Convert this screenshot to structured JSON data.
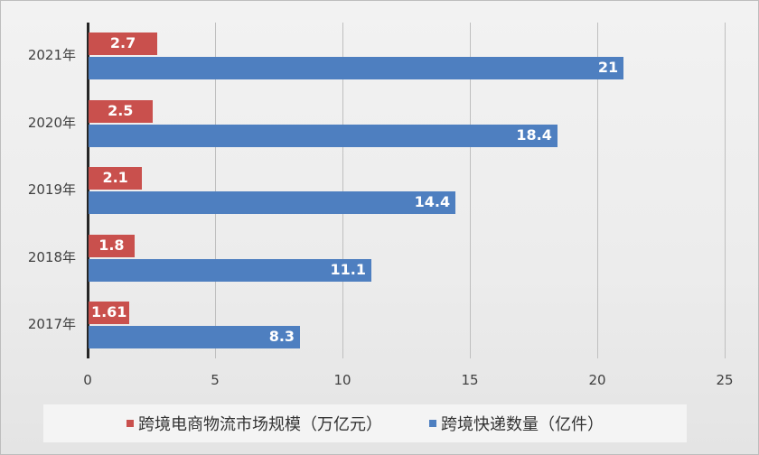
{
  "chart_data": {
    "type": "bar",
    "orientation": "horizontal",
    "title": "",
    "xlabel": "",
    "ylabel": "",
    "categories": [
      "2021年",
      "2020年",
      "2019年",
      "2018年",
      "2017年"
    ],
    "series": [
      {
        "name": "跨境电商物流市场规模（万亿元）",
        "color": "#c9504d",
        "values": [
          2.7,
          2.5,
          2.1,
          1.8,
          1.61
        ]
      },
      {
        "name": "跨境快递数量（亿件）",
        "color": "#4e7fc0",
        "values": [
          21,
          18.4,
          14.4,
          11.1,
          8.3
        ]
      }
    ],
    "xlim": [
      0,
      25
    ],
    "xticks": [
      "0",
      "5",
      "10",
      "15",
      "20",
      "25"
    ],
    "grid": true,
    "legend_position": "bottom",
    "data_labels": true
  },
  "legend": {
    "items": [
      {
        "label": "跨境电商物流市场规模（万亿元）",
        "color": "#c9504d"
      },
      {
        "label": "跨境快递数量（亿件）",
        "color": "#4e7fc0"
      }
    ]
  }
}
